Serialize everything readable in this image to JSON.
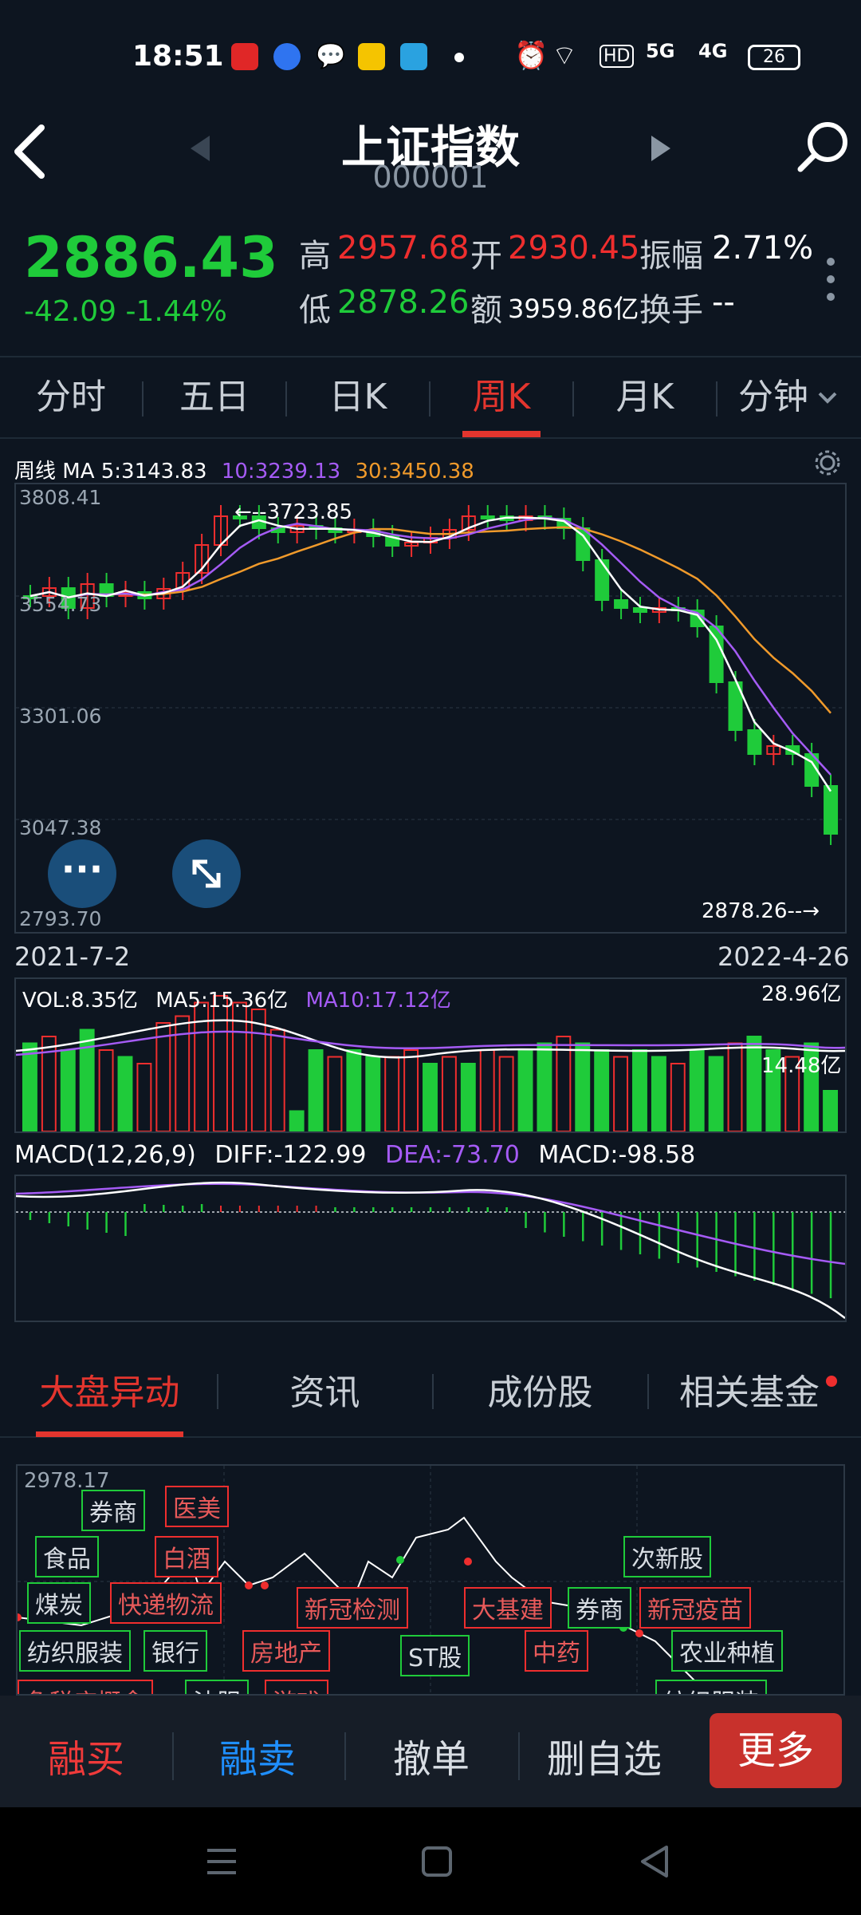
{
  "status_bar": {
    "time": "18:51",
    "battery": "26",
    "network": [
      "5G",
      "4G"
    ],
    "hd": "HD"
  },
  "header": {
    "title": "上证指数",
    "code": "000001"
  },
  "quote": {
    "price": "2886.43",
    "change": "-42.09 -1.44%",
    "high_label": "高",
    "high": "2957.68",
    "open_label": "开",
    "open": "2930.45",
    "amp_label": "振幅",
    "amp": "2.71%",
    "low_label": "低",
    "low": "2878.26",
    "amount_label": "额",
    "amount": "3959.86亿",
    "turnover_label": "换手",
    "turnover": "--"
  },
  "period_tabs": [
    "分时",
    "五日",
    "日K",
    "周K",
    "月K",
    "分钟"
  ],
  "colors": {
    "up": "#ef2e2e",
    "down": "#1fcb3a",
    "ma5": "#ffffff",
    "ma10": "#a55bf5",
    "ma30": "#f09a2b",
    "accent": "#e3352e",
    "blue": "#1f7fe0"
  },
  "kline": {
    "ma_title": "周线 MA",
    "ma5": "5:3143.83",
    "ma10": "10:3239.13",
    "ma30": "30:3450.38",
    "y_labels": [
      "3808.41",
      "3554.73",
      "3301.06",
      "3047.38",
      "2793.70"
    ],
    "high_marker": "←--3723.85",
    "low_marker": "2878.26--→",
    "date_start": "2021-7-2",
    "date_end": "2022-4-26"
  },
  "volume": {
    "vol": "VOL:8.35亿",
    "ma5": "MA5:15.36亿",
    "ma10": "MA10:17.12亿",
    "top": "28.96亿",
    "mid": "14.48亿"
  },
  "macd": {
    "title": "MACD(12,26,9)",
    "diff": "DIFF:-122.99",
    "dea": "DEA:-73.70",
    "macd": "MACD:-98.58"
  },
  "bottom_tabs": [
    "大盘异动",
    "资讯",
    "成份股",
    "相关基金"
  ],
  "intraday": {
    "top_label": "2978.17",
    "tags": [
      {
        "text": "券商",
        "c": "g"
      },
      {
        "text": "医美",
        "c": "r"
      },
      {
        "text": "食品",
        "c": "g"
      },
      {
        "text": "白酒",
        "c": "r"
      },
      {
        "text": "煤炭",
        "c": "g"
      },
      {
        "text": "快递物流",
        "c": "r"
      },
      {
        "text": "新冠检测",
        "c": "r"
      },
      {
        "text": "大基建",
        "c": "r"
      },
      {
        "text": "券商",
        "c": "g"
      },
      {
        "text": "新冠疫苗",
        "c": "r"
      },
      {
        "text": "次新股",
        "c": "g"
      },
      {
        "text": "纺织服装",
        "c": "g"
      },
      {
        "text": "银行",
        "c": "g"
      },
      {
        "text": "房地产",
        "c": "r"
      },
      {
        "text": "ST股",
        "c": "g"
      },
      {
        "text": "中药",
        "c": "r"
      },
      {
        "text": "农业种植",
        "c": "g"
      },
      {
        "text": "免税店概念",
        "c": "r"
      },
      {
        "text": "油服",
        "c": "g"
      },
      {
        "text": "游戏",
        "c": "r"
      },
      {
        "text": "纺织服装",
        "c": "g"
      }
    ]
  },
  "actions": {
    "buy": "融买",
    "sell": "融卖",
    "cancel": "撤单",
    "remove": "删自选",
    "more": "更多"
  }
}
